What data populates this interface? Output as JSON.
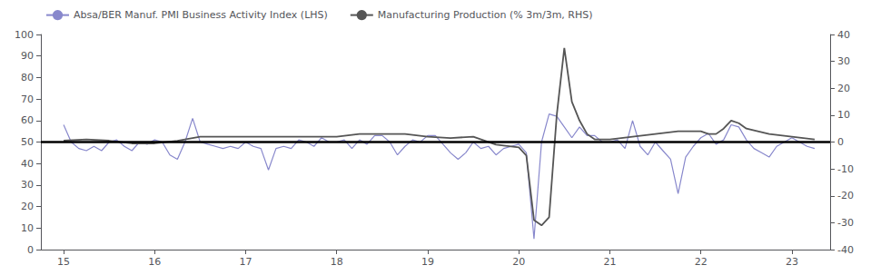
{
  "chart_data": {
    "type": "line",
    "xlim": [
      14.75,
      23.42
    ],
    "xticks": [
      15,
      16,
      17,
      18,
      19,
      20,
      21,
      22,
      23
    ],
    "ylim": [
      0,
      100
    ],
    "yticks": [
      0,
      10,
      20,
      30,
      40,
      50,
      60,
      70,
      80,
      90,
      100
    ],
    "y2lim": [
      -40,
      40
    ],
    "y2ticks": [
      -40,
      -30,
      -20,
      -10,
      0,
      10,
      20,
      30,
      40
    ],
    "grid": false,
    "legend": "upper left",
    "hline": {
      "value": 50,
      "color": "#000000"
    },
    "series": [
      {
        "name": "Absa/BER Manuf. PMI Business Activity Index (LHS)",
        "color": "#8888cc",
        "x": [
          15.0,
          15.083,
          15.167,
          15.25,
          15.333,
          15.417,
          15.5,
          15.583,
          15.667,
          15.75,
          15.833,
          15.917,
          16.0,
          16.083,
          16.167,
          16.25,
          16.333,
          16.417,
          16.5,
          16.583,
          16.667,
          16.75,
          16.833,
          16.917,
          17.0,
          17.083,
          17.167,
          17.25,
          17.333,
          17.417,
          17.5,
          17.583,
          17.667,
          17.75,
          17.833,
          17.917,
          18.0,
          18.083,
          18.167,
          18.25,
          18.333,
          18.417,
          18.5,
          18.583,
          18.667,
          18.75,
          18.833,
          18.917,
          19.0,
          19.083,
          19.167,
          19.25,
          19.333,
          19.417,
          19.5,
          19.583,
          19.667,
          19.75,
          19.833,
          19.917,
          20.0,
          20.083,
          20.167,
          20.25,
          20.333,
          20.417,
          20.5,
          20.583,
          20.667,
          20.75,
          20.833,
          20.917,
          21.0,
          21.083,
          21.167,
          21.25,
          21.333,
          21.417,
          21.5,
          21.583,
          21.667,
          21.75,
          21.833,
          21.917,
          22.0,
          22.083,
          22.167,
          22.25,
          22.333,
          22.417,
          22.5,
          22.583,
          22.667,
          22.75,
          22.833,
          22.917,
          23.0,
          23.083,
          23.167,
          23.25
        ],
        "values": [
          58,
          50,
          47,
          46,
          48,
          46,
          50,
          51,
          48,
          46,
          50,
          49,
          51,
          50,
          44,
          42,
          50,
          61,
          50,
          49,
          48,
          47,
          48,
          47,
          50,
          48,
          47,
          37,
          47,
          48,
          47,
          51,
          50,
          48,
          52,
          50,
          50,
          51,
          47,
          51,
          49,
          53,
          53,
          50,
          44,
          48,
          51,
          50,
          53,
          53,
          49,
          45,
          42,
          45,
          50,
          47,
          48,
          44,
          47,
          48,
          49,
          45,
          5,
          50,
          63,
          62,
          57,
          52,
          57,
          53,
          53,
          50,
          50,
          51,
          47,
          60,
          48,
          44,
          50,
          46,
          42,
          26,
          43,
          48,
          52,
          54,
          49,
          51,
          58,
          57,
          51,
          47,
          45,
          43,
          48,
          50,
          52,
          50,
          48,
          47
        ]
      },
      {
        "name": "Manufacturing Production (% 3m/3m, RHS)",
        "color": "#555555",
        "axis": "y2",
        "x": [
          15.0,
          15.25,
          15.5,
          15.75,
          16.0,
          16.25,
          16.5,
          16.75,
          17.0,
          17.25,
          17.5,
          17.75,
          18.0,
          18.25,
          18.5,
          18.75,
          19.0,
          19.25,
          19.5,
          19.75,
          20.0,
          20.083,
          20.167,
          20.25,
          20.333,
          20.417,
          20.5,
          20.583,
          20.667,
          20.75,
          20.833,
          21.0,
          21.25,
          21.5,
          21.75,
          22.0,
          22.083,
          22.167,
          22.25,
          22.333,
          22.417,
          22.5,
          22.75,
          23.0,
          23.25
        ],
        "values": [
          0.5,
          1,
          0.5,
          -0.5,
          -0.5,
          0.5,
          2,
          2,
          2,
          2,
          2,
          2,
          2,
          3,
          3,
          3,
          2,
          1.5,
          2,
          -1,
          -2,
          -5,
          -29,
          -31,
          -28,
          10,
          35,
          15,
          8,
          3,
          1,
          1,
          2,
          3,
          4,
          4,
          3,
          3,
          5,
          8,
          7,
          5,
          3,
          2,
          1
        ]
      }
    ]
  }
}
